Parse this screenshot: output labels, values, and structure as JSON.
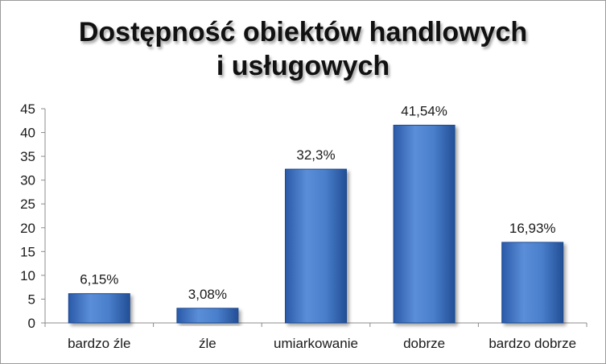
{
  "chart_data": {
    "type": "bar",
    "title_lines": [
      "Dostępność obiektów handlowych",
      "i usługowych"
    ],
    "categories": [
      "bardzo źle",
      "źle",
      "umiarkowanie",
      "dobrze",
      "bardzo dobrze"
    ],
    "values": [
      6.15,
      3.08,
      32.3,
      41.54,
      16.93
    ],
    "data_labels": [
      "6,15%",
      "3,08%",
      "32,3%",
      "41,54%",
      "16,93%"
    ],
    "ylim": [
      0,
      45
    ],
    "yticks": [
      0,
      5,
      10,
      15,
      20,
      25,
      30,
      35,
      40,
      45
    ],
    "grid": false,
    "legend": "none",
    "bar_color": "#3a6fc4",
    "bar_color_dark": "#1f4a8f",
    "bar_color_light": "#6e9be0"
  }
}
